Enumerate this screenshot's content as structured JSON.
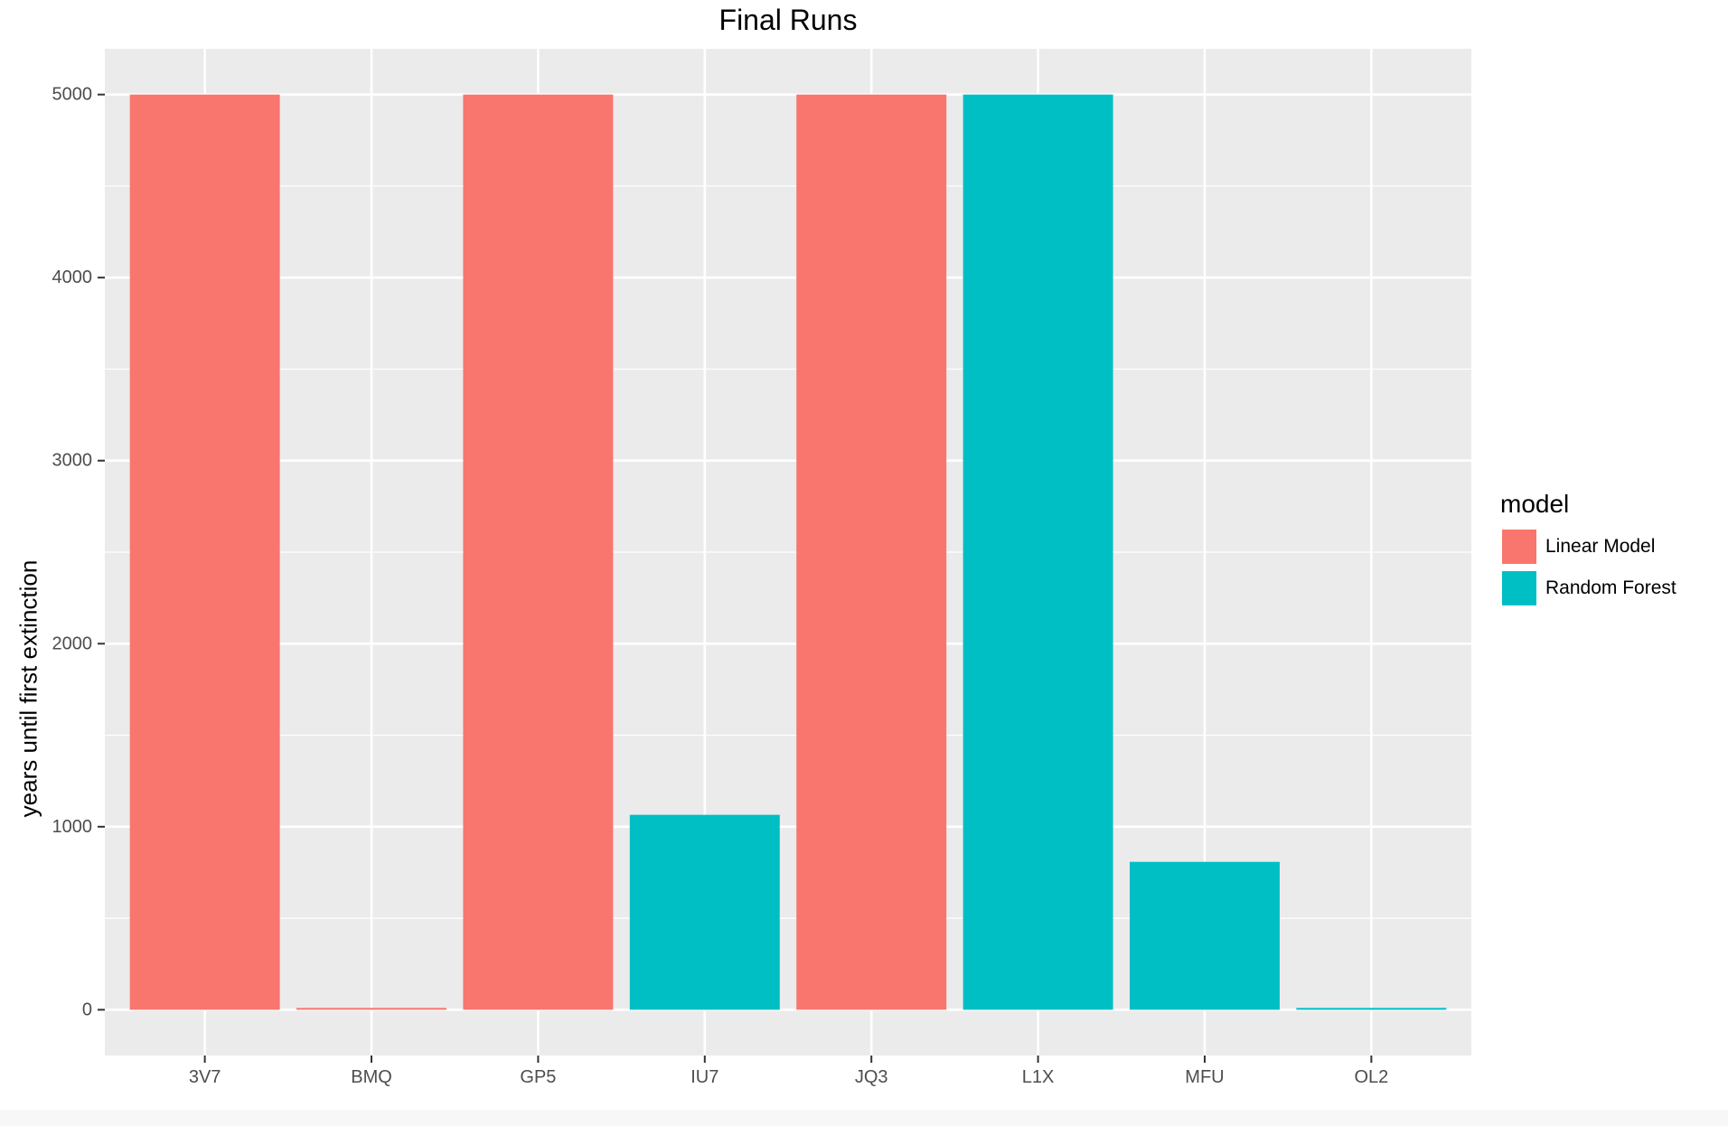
{
  "chart_data": {
    "type": "bar",
    "title": "Final Runs",
    "xlabel": "",
    "ylabel": "years until first extinction",
    "categories": [
      "3V7",
      "BMQ",
      "GP5",
      "IU7",
      "JQ3",
      "L1X",
      "MFU",
      "OL2"
    ],
    "values": [
      5000,
      10,
      5000,
      1065,
      5000,
      5000,
      808,
      10
    ],
    "fill_groups": [
      "Linear Model",
      "Linear Model",
      "Linear Model",
      "Random Forest",
      "Linear Model",
      "Random Forest",
      "Random Forest",
      "Random Forest"
    ],
    "ylim": [
      -250,
      5250
    ],
    "y_ticks": [
      0,
      1000,
      2000,
      3000,
      4000,
      5000
    ],
    "y_tick_labels": [
      "0",
      "1000",
      "2000",
      "3000",
      "4000",
      "5000"
    ],
    "grid": true,
    "legend": {
      "title": "model",
      "position": "right",
      "entries": [
        {
          "name": "Linear Model",
          "color": "#F8766D"
        },
        {
          "name": "Random Forest",
          "color": "#00BFC4"
        }
      ]
    },
    "colors": {
      "panel_background": "#EBEBEB",
      "grid": "#FFFFFF",
      "tick_text": "#4D4D4D"
    }
  }
}
